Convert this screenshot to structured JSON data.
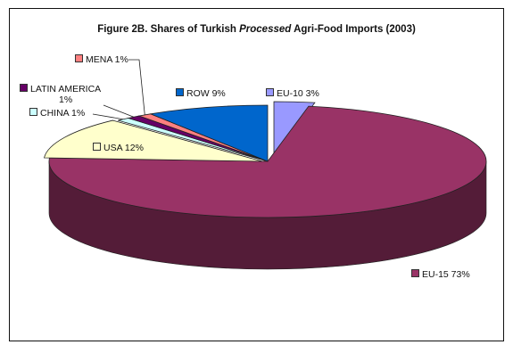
{
  "chart_data": {
    "type": "pie",
    "title_parts": [
      "Figure 2B. Shares of Turkish ",
      "Processed",
      " Agri-Food Imports (2003)"
    ],
    "slices": [
      {
        "name": "EU-10",
        "value": 3,
        "label": "EU-10 3%",
        "color": "#9999ff"
      },
      {
        "name": "EU-15",
        "value": 73,
        "label": "EU-15 73%",
        "color": "#993366"
      },
      {
        "name": "USA",
        "value": 12,
        "label": "USA 12%",
        "color": "#ffffcc"
      },
      {
        "name": "CHINA",
        "value": 1,
        "label": "CHINA 1%",
        "color": "#ccffff"
      },
      {
        "name": "LATIN AMERICA",
        "value": 1,
        "label": "LATIN AMERICA\n1%",
        "color": "#660066"
      },
      {
        "name": "MENA",
        "value": 1,
        "label": "MENA 1%",
        "color": "#ff8080"
      },
      {
        "name": "ROW",
        "value": 9,
        "label": "ROW 9%",
        "color": "#0066cc"
      }
    ],
    "legend": "none",
    "view": "3d-pie"
  }
}
